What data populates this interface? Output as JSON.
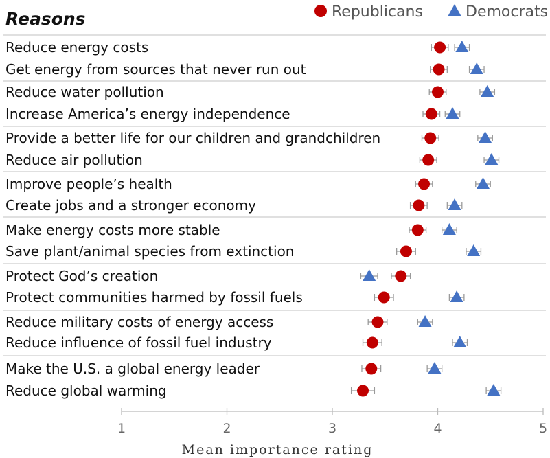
{
  "chart_data": {
    "type": "scatter",
    "title": "Reasons",
    "xlabel": "Mean importance rating",
    "xlim": [
      1,
      5
    ],
    "xticks": [
      "1",
      "2",
      "3",
      "4",
      "5"
    ],
    "legend_position": "top-right",
    "categories": [
      "Reduce energy costs",
      "Get energy from sources that never run out",
      "Reduce water pollution",
      "Increase America’s energy independence",
      "Provide a better life for our children and grandchildren",
      "Reduce air pollution",
      "Improve people’s health",
      "Create jobs and a stronger economy",
      "Make energy costs more stable",
      "Save plant/animal species from extinction",
      "Protect God’s creation",
      "Protect communities harmed by fossil fuels",
      "Reduce military costs of energy access",
      "Reduce influence of fossil fuel industry",
      "Make the U.S. a global energy leader",
      "Reduce global warming"
    ],
    "series": [
      {
        "name": "Republicans",
        "marker": "circle",
        "color": "#c00000",
        "values": [
          4.02,
          4.01,
          4.0,
          3.94,
          3.93,
          3.91,
          3.87,
          3.82,
          3.81,
          3.7,
          3.65,
          3.49,
          3.43,
          3.38,
          3.37,
          3.29
        ],
        "error": [
          0.08,
          0.08,
          0.08,
          0.08,
          0.08,
          0.08,
          0.08,
          0.08,
          0.08,
          0.09,
          0.09,
          0.09,
          0.09,
          0.09,
          0.09,
          0.11
        ]
      },
      {
        "name": "Democrats",
        "marker": "triangle",
        "color": "#4472c4",
        "values": [
          4.23,
          4.37,
          4.47,
          4.14,
          4.45,
          4.51,
          4.43,
          4.16,
          4.11,
          4.34,
          3.35,
          4.18,
          3.88,
          4.21,
          3.97,
          4.53
        ],
        "error": [
          0.07,
          0.07,
          0.07,
          0.07,
          0.07,
          0.07,
          0.07,
          0.07,
          0.07,
          0.07,
          0.08,
          0.07,
          0.07,
          0.07,
          0.07,
          0.07
        ]
      }
    ]
  }
}
